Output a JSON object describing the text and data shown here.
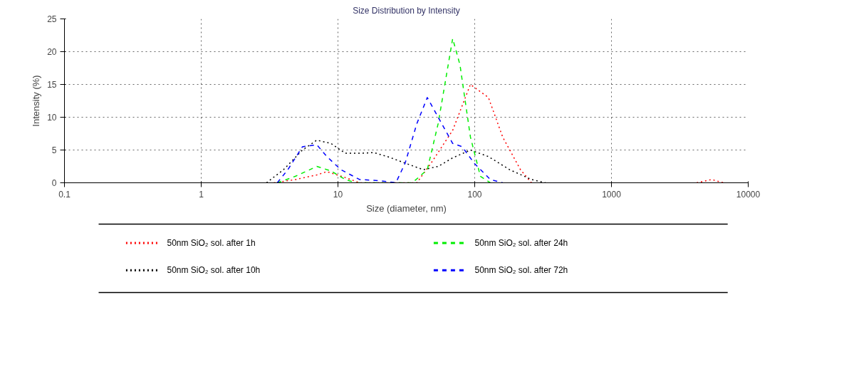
{
  "chart_data": {
    "type": "line",
    "title": "Size Distribution by Intensity",
    "xlabel": "Size (diameter, nm)",
    "ylabel": "Intensity (%)",
    "log": "x",
    "xlim": [
      0.1,
      10000
    ],
    "xticks": [
      0.1,
      1,
      10,
      100,
      1000,
      10000
    ],
    "ylim": [
      0,
      25
    ],
    "yticks": [
      0,
      5,
      10,
      15,
      20,
      25
    ],
    "grid": true,
    "legend": "bottom",
    "series": [
      {
        "name": "50nm SiO₂ sol. after 1h",
        "color": "#ff0000",
        "line_style": "dotted",
        "x": [
          3.4,
          4.9,
          7.0,
          8.3,
          11.3,
          14.4,
          37.7,
          48,
          69,
          93,
          126,
          160,
          216,
          260
        ],
        "values": [
          0,
          0.5,
          1.2,
          1.7,
          0.8,
          0,
          0,
          3,
          8,
          15,
          13,
          7,
          2,
          0
        ]
      },
      {
        "name": "50nm SiO₂ sol. after 10h",
        "color": "#000000",
        "line_style": "dotted",
        "x": [
          3.0,
          4.0,
          5.5,
          7.0,
          8.9,
          11.3,
          14.4,
          18.3,
          23,
          31,
          42,
          54,
          69,
          93,
          126,
          180,
          260,
          330
        ],
        "values": [
          0,
          2,
          5,
          6.5,
          6,
          4.5,
          4.5,
          4.6,
          4,
          3,
          2,
          2.5,
          3.8,
          5,
          4,
          2,
          0.5,
          0
        ]
      },
      {
        "name": "50nm SiO₂ sol. after 24h",
        "color": "#00ee00",
        "line_style": "dashed",
        "x": [
          3.6,
          4.9,
          7.0,
          8.9,
          11.3,
          13.5,
          35,
          45,
          54,
          69,
          78,
          93,
          110,
          130
        ],
        "values": [
          0,
          1,
          2.5,
          1.8,
          0.5,
          0,
          0,
          2,
          9,
          22,
          18,
          7,
          1,
          0
        ]
      },
      {
        "name": "50nm SiO₂ sol. after 72h",
        "color": "#0000ff",
        "line_style": "dashed",
        "x": [
          3.6,
          4.3,
          5.5,
          7.0,
          8.3,
          10.5,
          14.4,
          20.5,
          26.5,
          31,
          37.7,
          45,
          54,
          69,
          81,
          99,
          130,
          160
        ],
        "values": [
          0,
          2,
          5.5,
          5.8,
          4,
          2,
          0.5,
          0.3,
          0,
          3,
          9,
          13,
          10,
          6,
          5.5,
          3,
          0.5,
          0
        ]
      },
      {
        "color": "#ff0000",
        "line_style": "dotted",
        "x": [
          4200,
          5400,
          6600
        ],
        "values": [
          0,
          0.5,
          0
        ]
      }
    ]
  }
}
